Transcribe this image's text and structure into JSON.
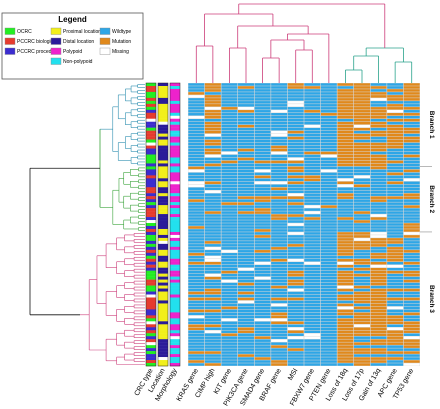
{
  "chart_data": {
    "type": "heatmap",
    "legend": {
      "title": "Legend",
      "placement": "top-left",
      "entries": [
        {
          "label": "OCRC",
          "color": "#22ee22"
        },
        {
          "label": "PCCRC biological",
          "color": "#e63b2e"
        },
        {
          "label": "PCCRC procedural",
          "color": "#3b2ccf"
        },
        {
          "label": "Proximal location",
          "color": "#f2ef1a"
        },
        {
          "label": "Distal location",
          "color": "#2a1a9a"
        },
        {
          "label": "Polypoid",
          "color": "#ee22cc"
        },
        {
          "label": "Non-polypoid",
          "color": "#22e0ee"
        },
        {
          "label": "Wildtype",
          "color": "#2ea6e6"
        },
        {
          "label": "Mutation",
          "color": "#e0891c"
        },
        {
          "label": "Missing",
          "color": "#ffffff"
        }
      ]
    },
    "annotation_columns": [
      "CRC type",
      "Location",
      "Morphology"
    ],
    "mutation_columns": [
      "KRAS gene",
      "CIMP high",
      "KIT gene",
      "PIK3CA gene",
      "SMAD4 gene",
      "BRAF gene",
      "MSI",
      "FBXW7 gene",
      "PTEN gene",
      "Loss of 18q",
      "Loss of 17p",
      "Gain of 13q",
      "APC gene",
      "TP53 gene"
    ],
    "branches": [
      {
        "label": "Branch 1"
      },
      {
        "label": "Branch 2"
      },
      {
        "label": "Branch 3"
      }
    ],
    "mutation_frequency": [
      0.1,
      0.18,
      0.05,
      0.12,
      0.1,
      0.15,
      0.2,
      0.06,
      0.05,
      0.62,
      0.58,
      0.5,
      0.4,
      0.45
    ],
    "colors": {
      "wildtype": "#2ea6e6",
      "mutation": "#e0891c",
      "missing": "#ffffff",
      "tree_top_left": "#cc3d7a",
      "tree_top_right": "#2aa38c",
      "tree_branch1": "#2e8fb0",
      "tree_branch2": "#3aa33a",
      "tree_branch3": "#cc3d7a",
      "tree_root": "#111111"
    }
  }
}
